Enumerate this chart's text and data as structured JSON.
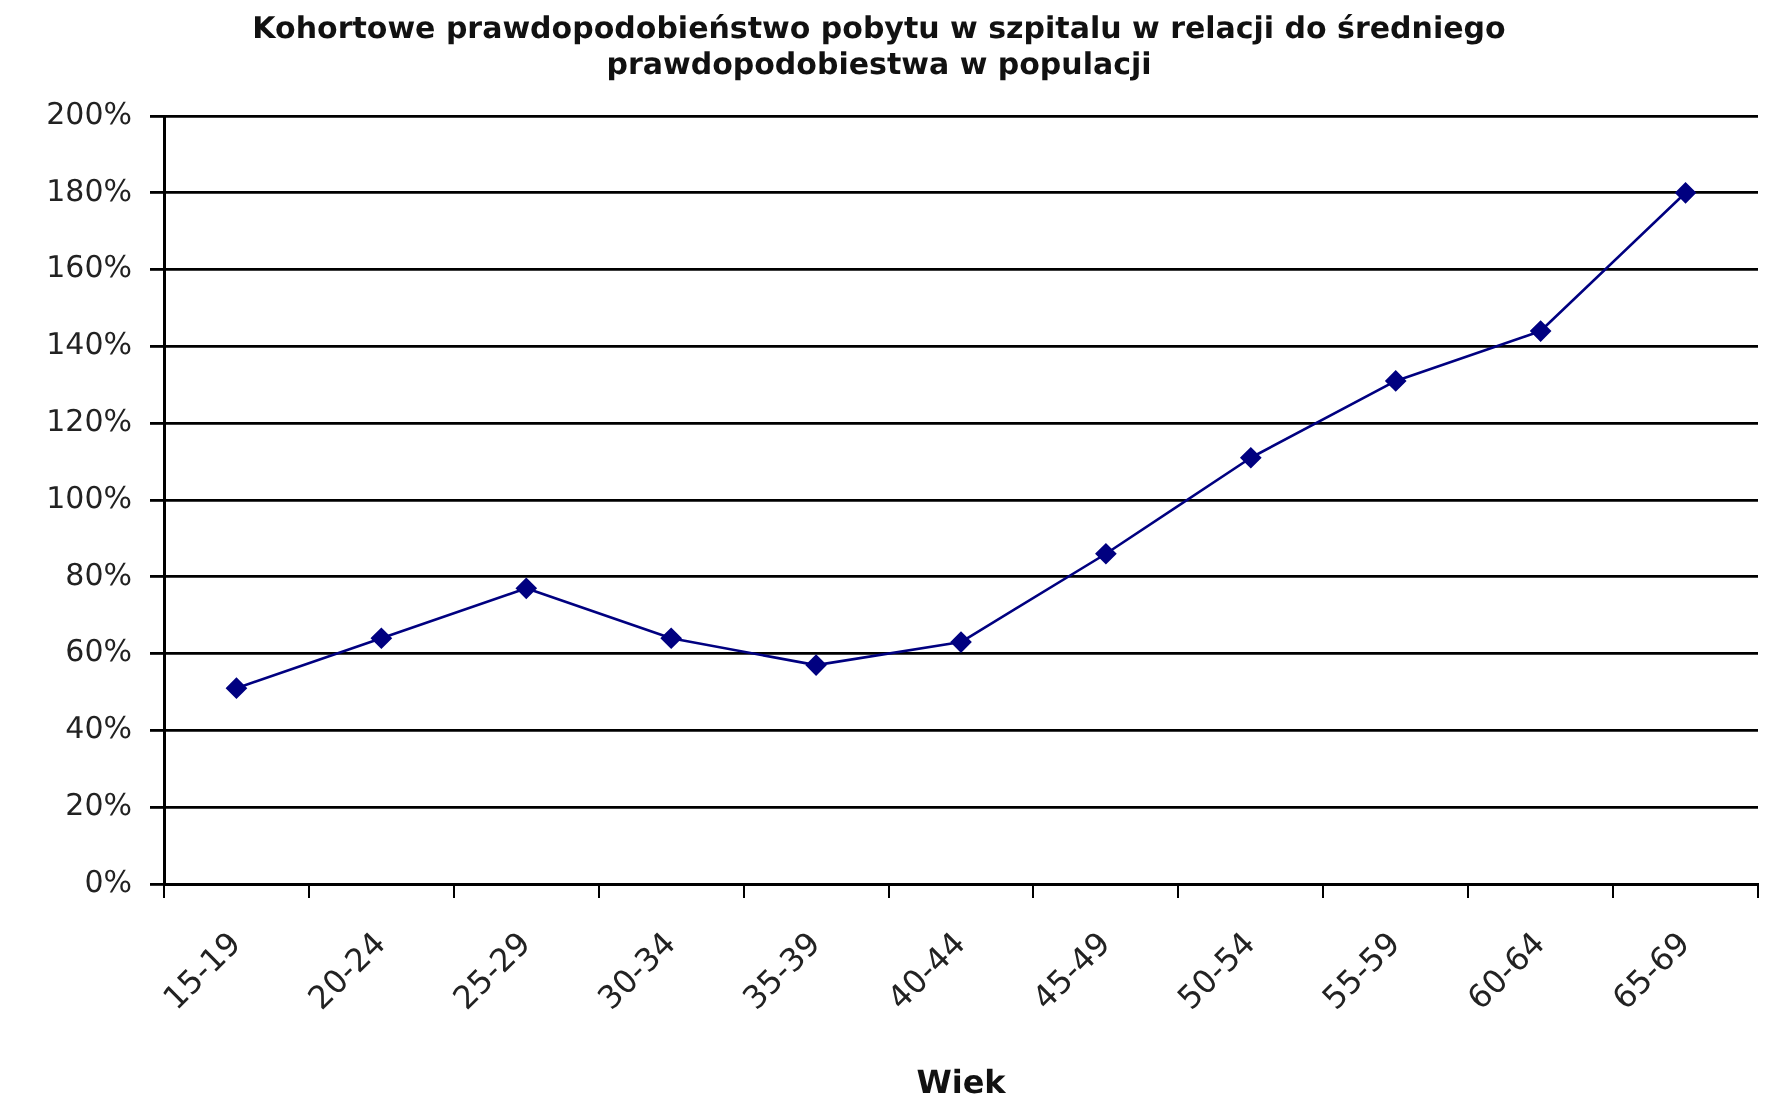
{
  "chart_data": {
    "type": "line",
    "title": "Kohortowe prawdopodobieństwo pobytu w szpitalu w relacji do średniego prawdopodobiestwa w populacji",
    "xlabel": "Wiek",
    "categories": [
      "15-19",
      "20-24",
      "25-29",
      "30-34",
      "35-39",
      "40-44",
      "45-49",
      "50-54",
      "55-59",
      "60-64",
      "65-69"
    ],
    "values": [
      51,
      64,
      77,
      64,
      57,
      63,
      86,
      111,
      131,
      144,
      180
    ],
    "color": "#000080",
    "ylim": [
      0,
      200
    ],
    "yticks": [
      {
        "value": 0,
        "label": "0%"
      },
      {
        "value": 20,
        "label": "20%"
      },
      {
        "value": 40,
        "label": "40%"
      },
      {
        "value": 60,
        "label": "60%"
      },
      {
        "value": 80,
        "label": "80%"
      },
      {
        "value": 100,
        "label": "100%"
      },
      {
        "value": 120,
        "label": "120%"
      },
      {
        "value": 140,
        "label": "140%"
      },
      {
        "value": 160,
        "label": "160%"
      },
      {
        "value": 180,
        "label": "180%"
      },
      {
        "value": 200,
        "label": "200%"
      }
    ],
    "grid": "y",
    "marker": "diamond"
  }
}
